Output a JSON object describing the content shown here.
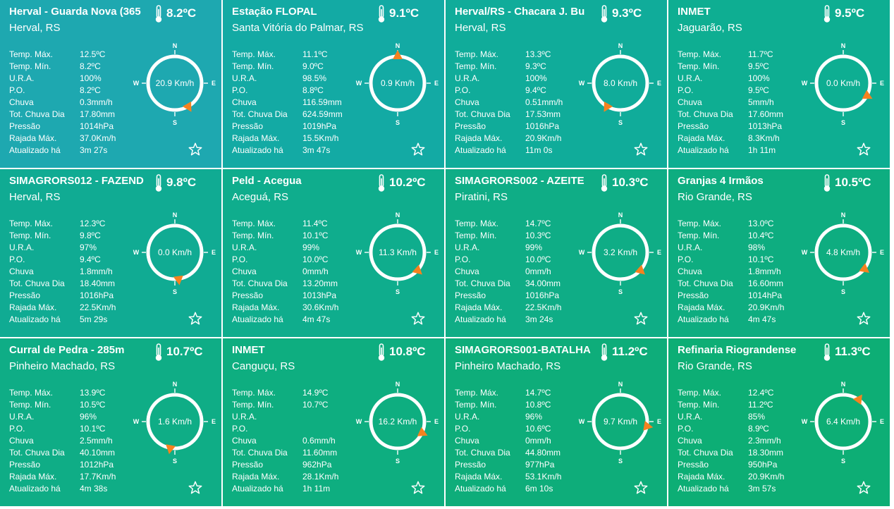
{
  "labels": {
    "temp_max": "Temp. Máx.",
    "temp_min": "Temp. Mín.",
    "ura": "U.R.A.",
    "po": "P.O.",
    "chuva": "Chuva",
    "tot_chuva": "Tot. Chuva Dia",
    "pressao": "Pressão",
    "rajada": "Rajada Máx.",
    "atualizado": "Atualizado há"
  },
  "compass_labels": {
    "n": "N",
    "s": "S",
    "e": "E",
    "w": "W"
  },
  "icons": {
    "temperature": "thermometer-icon",
    "favorite": "star-icon",
    "wind": "compass-icon"
  },
  "colors": {
    "card_bg": [
      "#1ea8b0",
      "#13aaa4",
      "#10ac9a",
      "#0eae92",
      "#10ab93",
      "#0fad8d",
      "#0fad86",
      "#0ead80",
      "#0fad86",
      "#0eae80",
      "#0ead7a",
      "#0dae75"
    ],
    "arrow": "#f5821f",
    "ring": "#ffffff"
  },
  "stations": [
    {
      "name": "Herval - Guarda Nova (365",
      "temp": "8.2ºC",
      "location": "Herval, RS",
      "wind": "20.9 Km/h",
      "wind_dir_deg": 150,
      "values": {
        "temp_max": "12.5ºC",
        "temp_min": "8.2ºC",
        "ura": "100%",
        "po": "8.2ºC",
        "chuva": "0.3mm/h",
        "tot_chuva": "17.80mm",
        "pressao": "1014hPa",
        "rajada": "37.0Km/h",
        "atualizado": "3m 27s"
      }
    },
    {
      "name": "Estação FLOPAL",
      "temp": "9.1ºC",
      "location": "Santa Vitória do Palmar, RS",
      "wind": "0.9 Km/h",
      "wind_dir_deg": 0,
      "values": {
        "temp_max": "11.1ºC",
        "temp_min": "9.0ºC",
        "ura": "98.5%",
        "po": "8.8ºC",
        "chuva": "116.59mm",
        "tot_chuva": "624.59mm",
        "pressao": "1019hPa",
        "rajada": "15.5Km/h",
        "atualizado": "3m 47s"
      }
    },
    {
      "name": "Herval/RS - Chacara J. Bu",
      "temp": "9.3ºC",
      "location": "Herval, RS",
      "wind": "8.0 Km/h",
      "wind_dir_deg": 210,
      "values": {
        "temp_max": "13.3ºC",
        "temp_min": "9.3ºC",
        "ura": "100%",
        "po": "9.4ºC",
        "chuva": "0.51mm/h",
        "tot_chuva": "17.53mm",
        "pressao": "1016hPa",
        "rajada": "20.9Km/h",
        "atualizado": "11m 0s"
      }
    },
    {
      "name": "INMET",
      "temp": "9.5ºC",
      "location": "Jaguarão, RS",
      "wind": "0.0 Km/h",
      "wind_dir_deg": 118,
      "values": {
        "temp_max": "11.7ºC",
        "temp_min": "9.5ºC",
        "ura": "100%",
        "po": "9.5ºC",
        "chuva": "5mm/h",
        "tot_chuva": "17.60mm",
        "pressao": "1013hPa",
        "rajada": "8.3Km/h",
        "atualizado": "1h 11m"
      }
    },
    {
      "name": "SIMAGRORS012 - FAZEND",
      "temp": "9.8ºC",
      "location": "Herval, RS",
      "wind": "0.0 Km/h",
      "wind_dir_deg": 172,
      "values": {
        "temp_max": "12.3ºC",
        "temp_min": "9.8ºC",
        "ura": "97%",
        "po": "9.4ºC",
        "chuva": "1.8mm/h",
        "tot_chuva": "18.40mm",
        "pressao": "1016hPa",
        "rajada": "22.5Km/h",
        "atualizado": "5m 29s"
      }
    },
    {
      "name": "Peld - Acegua",
      "temp": "10.2ºC",
      "location": "Aceguá, RS",
      "wind": "11.3 Km/h",
      "wind_dir_deg": 132,
      "values": {
        "temp_max": "11.4ºC",
        "temp_min": "10.1ºC",
        "ura": "99%",
        "po": "10.0ºC",
        "chuva": "0mm/h",
        "tot_chuva": "13.20mm",
        "pressao": "1013hPa",
        "rajada": "30.6Km/h",
        "atualizado": "4m 47s"
      }
    },
    {
      "name": "SIMAGRORS002 - AZEITE",
      "temp": "10.3ºC",
      "location": "Piratini, RS",
      "wind": "3.2 Km/h",
      "wind_dir_deg": 132,
      "values": {
        "temp_max": "14.7ºC",
        "temp_min": "10.3ºC",
        "ura": "99%",
        "po": "10.0ºC",
        "chuva": "0mm/h",
        "tot_chuva": "34.00mm",
        "pressao": "1016hPa",
        "rajada": "22.5Km/h",
        "atualizado": "3m 24s"
      }
    },
    {
      "name": "Granjas 4 Irmãos",
      "temp": "10.5ºC",
      "location": "Rio Grande, RS",
      "wind": "4.8 Km/h",
      "wind_dir_deg": 128,
      "values": {
        "temp_max": "13.0ºC",
        "temp_min": "10.4ºC",
        "ura": "98%",
        "po": "10.1ºC",
        "chuva": "1.8mm/h",
        "tot_chuva": "16.60mm",
        "pressao": "1014hPa",
        "rajada": "20.9Km/h",
        "atualizado": "4m 47s"
      }
    },
    {
      "name": "Curral de Pedra - 285m",
      "temp": "10.7ºC",
      "location": "Pinheiro Machado, RS",
      "wind": "1.6 Km/h",
      "wind_dir_deg": 190,
      "values": {
        "temp_max": "13.9ºC",
        "temp_min": "10.5ºC",
        "ura": "96%",
        "po": "10.1ºC",
        "chuva": "2.5mm/h",
        "tot_chuva": "40.10mm",
        "pressao": "1012hPa",
        "rajada": "17.7Km/h",
        "atualizado": "4m 38s"
      }
    },
    {
      "name": "INMET",
      "temp": "10.8ºC",
      "location": "Canguçu, RS",
      "wind": "16.2 Km/h",
      "wind_dir_deg": 115,
      "values": {
        "temp_max": "14.9ºC",
        "temp_min": "10.7ºC",
        "ura": "",
        "po": "",
        "chuva": "0.6mm/h",
        "tot_chuva": "11.60mm",
        "pressao": "962hPa",
        "rajada": "28.1Km/h",
        "atualizado": "1h 11m"
      }
    },
    {
      "name": "SIMAGRORS001-BATALHA",
      "temp": "11.2ºC",
      "location": "Pinheiro Machado, RS",
      "wind": "9.7 Km/h",
      "wind_dir_deg": 100,
      "values": {
        "temp_max": "14.7ºC",
        "temp_min": "10.8ºC",
        "ura": "96%",
        "po": "10.6ºC",
        "chuva": "0mm/h",
        "tot_chuva": "44.80mm",
        "pressao": "977hPa",
        "rajada": "53.1Km/h",
        "atualizado": "6m 10s"
      }
    },
    {
      "name": "Refinaria Riograndense",
      "temp": "11.3ºC",
      "location": "Rio Grande, RS",
      "wind": "6.4 Km/h",
      "wind_dir_deg": 35,
      "values": {
        "temp_max": "12.4ºC",
        "temp_min": "11.2ºC",
        "ura": "85%",
        "po": "8.9ºC",
        "chuva": "2.3mm/h",
        "tot_chuva": "18.30mm",
        "pressao": "950hPa",
        "rajada": "20.9Km/h",
        "atualizado": "3m 57s"
      }
    }
  ]
}
